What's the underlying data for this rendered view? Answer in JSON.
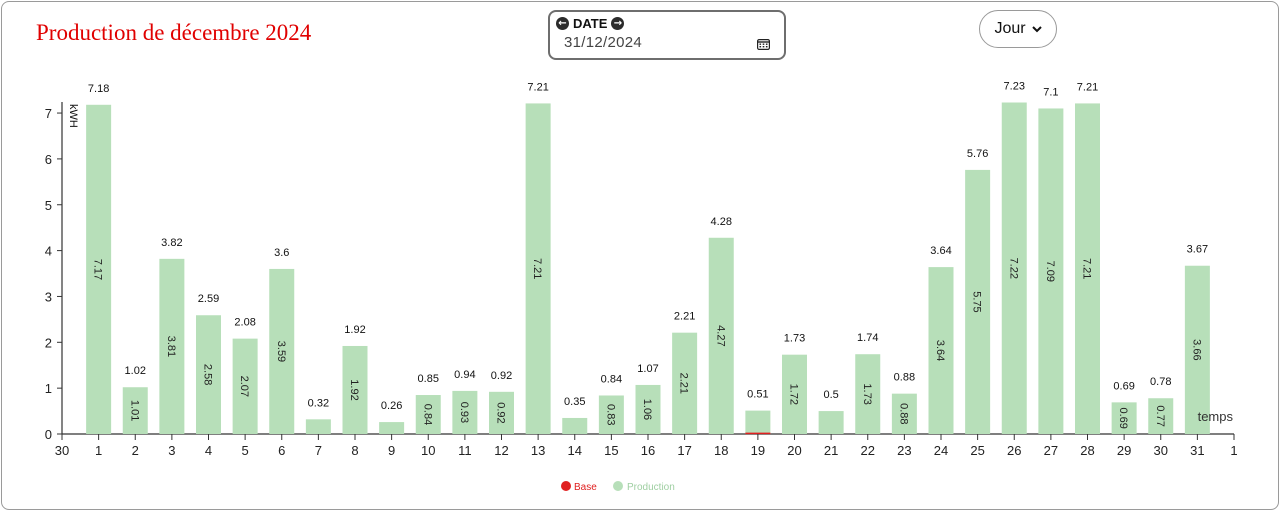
{
  "title": "Production de décembre 2024",
  "date_picker": {
    "label": "DATE",
    "value": "31/12/2024"
  },
  "period_select": {
    "value": "Jour"
  },
  "chart_data": {
    "type": "bar",
    "title": "Production de décembre 2024",
    "ylabel": "kWH",
    "xlabel": "temps",
    "ylim": [
      0,
      7.3
    ],
    "yticks": [
      0,
      1,
      2,
      3,
      4,
      5,
      6,
      7
    ],
    "edge_ticks": [
      "30",
      "1"
    ],
    "categories": [
      "1",
      "2",
      "3",
      "4",
      "5",
      "6",
      "7",
      "8",
      "9",
      "10",
      "11",
      "12",
      "13",
      "14",
      "15",
      "16",
      "17",
      "18",
      "19",
      "20",
      "21",
      "22",
      "23",
      "24",
      "25",
      "26",
      "27",
      "28",
      "29",
      "30",
      "31"
    ],
    "series": [
      {
        "name": "Base",
        "color": "#e02020",
        "values": [
          0,
          0,
          0,
          0,
          0,
          0,
          0,
          0,
          0,
          0,
          0,
          0,
          0,
          0,
          0,
          0,
          0,
          0,
          0.03,
          0,
          0,
          0,
          0,
          0,
          0,
          0,
          0,
          0,
          0,
          0,
          0
        ]
      },
      {
        "name": "Production",
        "color": "#b7dfb9",
        "values": [
          7.18,
          1.02,
          3.82,
          2.59,
          2.08,
          3.6,
          0.32,
          1.92,
          0.26,
          0.85,
          0.94,
          0.92,
          7.21,
          0.35,
          0.84,
          1.07,
          2.21,
          4.28,
          0.51,
          1.73,
          0.5,
          1.74,
          0.88,
          3.64,
          5.76,
          7.23,
          7.1,
          7.21,
          0.69,
          0.78,
          3.67
        ],
        "inner_labels": [
          "7.17",
          "1.01",
          "3.81",
          "2.58",
          "2.07",
          "3.59",
          "",
          "1.92",
          "",
          "0.84",
          "0.93",
          "0.92",
          "7.21",
          "",
          "0.83",
          "1.06",
          "2.21",
          "4.27",
          "",
          "1.72",
          "",
          "1.73",
          "0.88",
          "3.64",
          "5.75",
          "7.22",
          "7.09",
          "7.21",
          "0.69",
          "0.77",
          "3.66"
        ]
      }
    ],
    "legend": [
      "Base",
      "Production"
    ],
    "legend_position": "bottom-center"
  }
}
